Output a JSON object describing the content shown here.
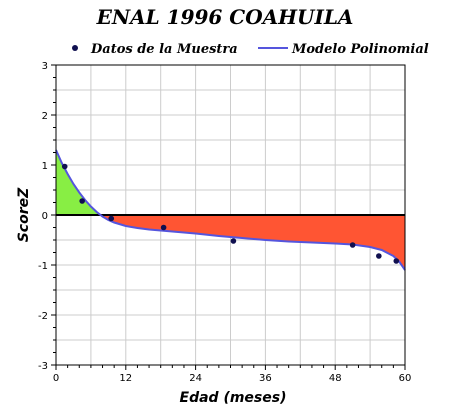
{
  "chart_data": {
    "type": "line",
    "title": "ENAL 1996 COAHUILA",
    "xlabel": "Edad (meses)",
    "ylabel": "ScoreZ",
    "xlim": [
      0,
      60
    ],
    "ylim": [
      -3,
      3
    ],
    "x_ticks": [
      "0",
      "12",
      "24",
      "36",
      "48",
      "60"
    ],
    "y_ticks": [
      "3",
      "2",
      "1",
      "0",
      "-1",
      "-2",
      "-3"
    ],
    "grid": true,
    "legend_position": "top",
    "series": [
      {
        "name": "Datos de la Muestra",
        "kind": "scatter",
        "color": "#101050",
        "points": [
          [
            1.5,
            0.97
          ],
          [
            4.5,
            0.28
          ],
          [
            9.5,
            -0.07
          ],
          [
            18.5,
            -0.25
          ],
          [
            30.5,
            -0.52
          ],
          [
            51,
            -0.6
          ],
          [
            55.5,
            -0.82
          ],
          [
            58.5,
            -0.92
          ]
        ]
      },
      {
        "name": "Modelo Polinomial",
        "kind": "line",
        "color": "#5555dd",
        "points": [
          [
            0,
            1.3
          ],
          [
            1,
            1.04
          ],
          [
            2,
            0.82
          ],
          [
            3,
            0.62
          ],
          [
            4,
            0.45
          ],
          [
            5,
            0.3
          ],
          [
            6,
            0.17
          ],
          [
            7,
            0.06
          ],
          [
            8,
            -0.03
          ],
          [
            9,
            -0.1
          ],
          [
            10,
            -0.15
          ],
          [
            12,
            -0.22
          ],
          [
            14,
            -0.26
          ],
          [
            16,
            -0.29
          ],
          [
            18,
            -0.31
          ],
          [
            20,
            -0.33
          ],
          [
            24,
            -0.37
          ],
          [
            28,
            -0.42
          ],
          [
            32,
            -0.46
          ],
          [
            36,
            -0.5
          ],
          [
            40,
            -0.53
          ],
          [
            44,
            -0.55
          ],
          [
            48,
            -0.57
          ],
          [
            51,
            -0.59
          ],
          [
            54,
            -0.64
          ],
          [
            56,
            -0.7
          ],
          [
            58,
            -0.82
          ],
          [
            59,
            -0.93
          ],
          [
            60,
            -1.1
          ]
        ]
      }
    ],
    "fill_above_zero_color": "#88ee44",
    "fill_below_zero_color": "#ff5533",
    "zero_line_color": "#000000"
  }
}
